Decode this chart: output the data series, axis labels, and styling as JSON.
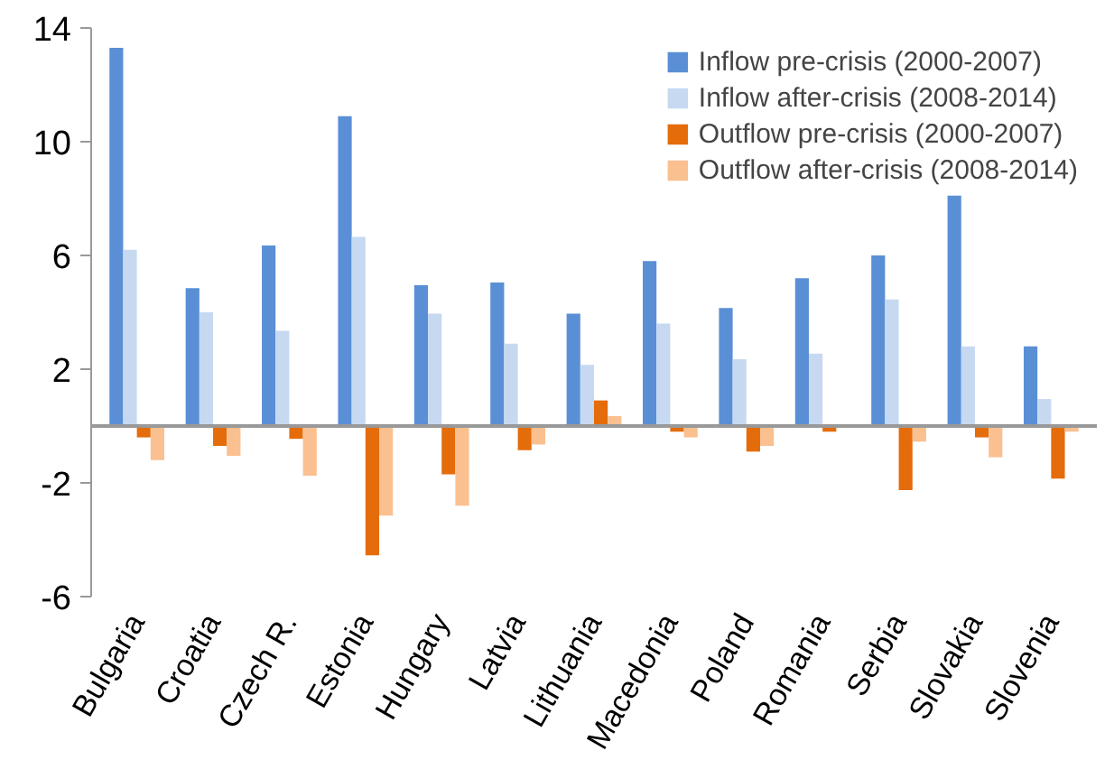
{
  "chart_data": {
    "type": "bar",
    "categories": [
      "Bulgaria",
      "Croatia",
      "Czech R.",
      "Estonia",
      "Hungary",
      "Latvia",
      "Lithuania",
      "Macedonia",
      "Poland",
      "Romania",
      "Serbia",
      "Slovakia",
      "Slovenia"
    ],
    "series": [
      {
        "name": "Inflow pre-crisis (2000-2007)",
        "color": "#5a8fd6",
        "values": [
          13.3,
          4.85,
          6.35,
          10.9,
          4.95,
          5.05,
          3.95,
          5.8,
          4.15,
          5.2,
          6.0,
          8.1,
          2.8
        ]
      },
      {
        "name": "Inflow after-crisis (2008-2014)",
        "color": "#c6d9f1",
        "values": [
          6.2,
          4.0,
          3.35,
          6.65,
          3.95,
          2.9,
          2.15,
          3.6,
          2.35,
          2.55,
          4.45,
          2.8,
          0.95
        ]
      },
      {
        "name": "Outflow pre-crisis (2000-2007)",
        "color": "#e46c0a",
        "values": [
          -0.4,
          -0.7,
          -0.45,
          -4.55,
          -1.7,
          -0.85,
          0.9,
          -0.2,
          -0.9,
          -0.2,
          -2.25,
          -0.4,
          -1.85
        ]
      },
      {
        "name": "Outflow after-crisis (2008-2014)",
        "color": "#fac090",
        "values": [
          -1.2,
          -1.05,
          -1.75,
          -3.15,
          -2.8,
          -0.65,
          0.35,
          -0.4,
          -0.7,
          0.0,
          -0.55,
          -1.1,
          -0.2
        ]
      }
    ],
    "ylim": [
      -6,
      14
    ],
    "yticks": [
      -6,
      -2,
      2,
      6,
      10,
      14
    ],
    "grid": false,
    "legend": "top right"
  }
}
